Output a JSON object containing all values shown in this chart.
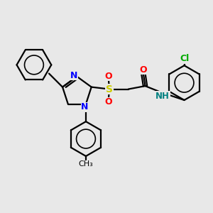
{
  "bg_color": "#e8e8e8",
  "line_color": "#000000",
  "bond_width": 1.6,
  "figsize": [
    3.0,
    3.0
  ],
  "dpi": 100,
  "colors": {
    "N": "#0000ff",
    "O": "#ff0000",
    "S": "#cccc00",
    "Cl": "#00aa00",
    "NH": "#008080",
    "C": "#000000"
  }
}
